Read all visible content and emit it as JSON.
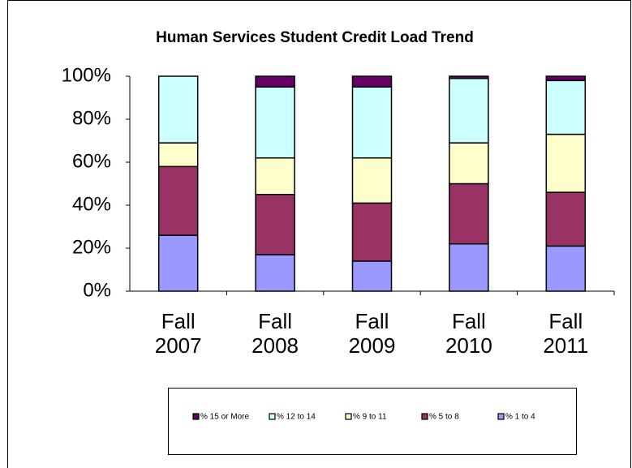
{
  "chart_data": {
    "type": "bar",
    "stacked": true,
    "title": "Human Services Student Credit Load Trend",
    "categories": [
      "Fall 2007",
      "Fall 2008",
      "Fall 2009",
      "Fall 2010",
      "Fall 2011"
    ],
    "series": [
      {
        "name": "% 1 to 4",
        "color": "#9999ff",
        "values": [
          26,
          17,
          14,
          22,
          21
        ]
      },
      {
        "name": "% 5 to 8",
        "color": "#993366",
        "values": [
          32,
          28,
          27,
          28,
          25
        ]
      },
      {
        "name": "% 9 to 11",
        "color": "#ffffcc",
        "values": [
          11,
          17,
          21,
          19,
          27
        ]
      },
      {
        "name": "% 12 to 14",
        "color": "#ccffff",
        "values": [
          31,
          33,
          33,
          30,
          25
        ]
      },
      {
        "name": "% 15 or More",
        "color": "#660066",
        "values": [
          0,
          5,
          5,
          1,
          2
        ]
      }
    ],
    "ylim": [
      0,
      100
    ],
    "yticks": [
      {
        "value": 0,
        "label": "0%"
      },
      {
        "value": 20,
        "label": "20%"
      },
      {
        "value": 40,
        "label": "40%"
      },
      {
        "value": 60,
        "label": "60%"
      },
      {
        "value": 80,
        "label": "80%"
      },
      {
        "value": 100,
        "label": "100%"
      }
    ],
    "grid": false,
    "legend": "bottom"
  }
}
